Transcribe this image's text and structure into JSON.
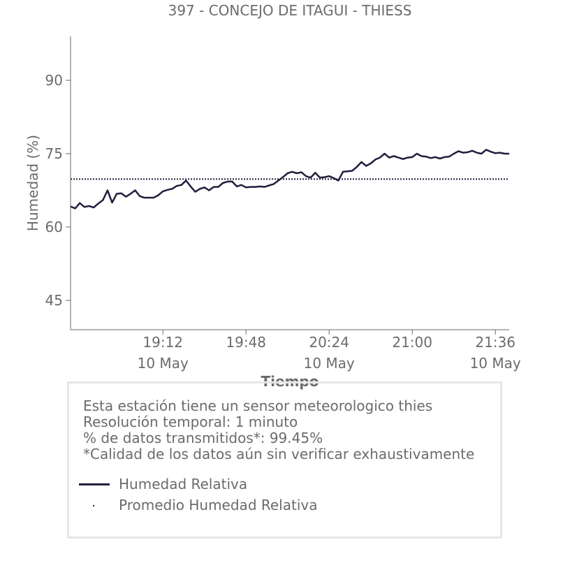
{
  "title": "397 - CONCEJO DE ITAGUI - THIESS",
  "chart_data": {
    "type": "line",
    "title": "397 - CONCEJO DE ITAGUI - THIESS",
    "xlabel": "Tiempo",
    "ylabel": "Humedad (%)",
    "ylim": [
      39,
      99
    ],
    "x_range": [
      "18:32",
      "21:42"
    ],
    "yticks": [
      45,
      60,
      75,
      90
    ],
    "xticks": [
      {
        "time": "19:12",
        "date": "10 May"
      },
      {
        "time": "19:48",
        "date": ""
      },
      {
        "time": "20:24",
        "date": "10 May"
      },
      {
        "time": "21:00",
        "date": ""
      },
      {
        "time": "21:36",
        "date": "10 May"
      }
    ],
    "grid": false,
    "series": [
      {
        "name": "Humedad Relativa",
        "color": "#1f1f3d",
        "style": "solid",
        "points": [
          [
            "18:32",
            64.2
          ],
          [
            "18:34",
            63.8
          ],
          [
            "18:36",
            64.9
          ],
          [
            "18:38",
            64.1
          ],
          [
            "18:40",
            64.3
          ],
          [
            "18:42",
            64.0
          ],
          [
            "18:44",
            64.8
          ],
          [
            "18:46",
            65.5
          ],
          [
            "18:48",
            67.5
          ],
          [
            "18:50",
            65.0
          ],
          [
            "18:52",
            66.8
          ],
          [
            "18:54",
            66.9
          ],
          [
            "18:56",
            66.2
          ],
          [
            "18:58",
            66.8
          ],
          [
            "19:00",
            67.5
          ],
          [
            "19:02",
            66.3
          ],
          [
            "19:04",
            66.0
          ],
          [
            "19:06",
            66.0
          ],
          [
            "19:08",
            66.0
          ],
          [
            "19:10",
            66.5
          ],
          [
            "19:12",
            67.3
          ],
          [
            "19:14",
            67.6
          ],
          [
            "19:16",
            67.8
          ],
          [
            "19:18",
            68.4
          ],
          [
            "19:20",
            68.6
          ],
          [
            "19:22",
            69.5
          ],
          [
            "19:24",
            68.3
          ],
          [
            "19:26",
            67.2
          ],
          [
            "19:28",
            67.8
          ],
          [
            "19:30",
            68.1
          ],
          [
            "19:32",
            67.5
          ],
          [
            "19:34",
            68.2
          ],
          [
            "19:36",
            68.2
          ],
          [
            "19:38",
            69.0
          ],
          [
            "19:40",
            69.3
          ],
          [
            "19:42",
            69.3
          ],
          [
            "19:44",
            68.3
          ],
          [
            "19:46",
            68.6
          ],
          [
            "19:48",
            68.1
          ],
          [
            "19:50",
            68.2
          ],
          [
            "19:52",
            68.2
          ],
          [
            "19:54",
            68.3
          ],
          [
            "19:56",
            68.2
          ],
          [
            "19:58",
            68.5
          ],
          [
            "20:00",
            68.8
          ],
          [
            "20:02",
            69.5
          ],
          [
            "20:04",
            70.2
          ],
          [
            "20:06",
            71.0
          ],
          [
            "20:08",
            71.3
          ],
          [
            "20:10",
            71.0
          ],
          [
            "20:12",
            71.2
          ],
          [
            "20:14",
            70.4
          ],
          [
            "20:16",
            70.1
          ],
          [
            "20:18",
            71.1
          ],
          [
            "20:20",
            70.1
          ],
          [
            "20:22",
            70.2
          ],
          [
            "20:24",
            70.4
          ],
          [
            "20:26",
            70.0
          ],
          [
            "20:28",
            69.5
          ],
          [
            "20:30",
            71.3
          ],
          [
            "20:32",
            71.4
          ],
          [
            "20:34",
            71.5
          ],
          [
            "20:36",
            72.3
          ],
          [
            "20:38",
            73.3
          ],
          [
            "20:40",
            72.5
          ],
          [
            "20:42",
            73.0
          ],
          [
            "20:44",
            73.8
          ],
          [
            "20:46",
            74.2
          ],
          [
            "20:48",
            75.0
          ],
          [
            "20:50",
            74.2
          ],
          [
            "20:52",
            74.5
          ],
          [
            "20:54",
            74.2
          ],
          [
            "20:56",
            73.9
          ],
          [
            "20:58",
            74.2
          ],
          [
            "21:00",
            74.3
          ],
          [
            "21:02",
            75.0
          ],
          [
            "21:04",
            74.5
          ],
          [
            "21:06",
            74.4
          ],
          [
            "21:08",
            74.1
          ],
          [
            "21:10",
            74.3
          ],
          [
            "21:12",
            74.0
          ],
          [
            "21:14",
            74.3
          ],
          [
            "21:16",
            74.4
          ],
          [
            "21:18",
            75.0
          ],
          [
            "21:20",
            75.5
          ],
          [
            "21:22",
            75.2
          ],
          [
            "21:24",
            75.3
          ],
          [
            "21:26",
            75.6
          ],
          [
            "21:28",
            75.2
          ],
          [
            "21:30",
            75.0
          ],
          [
            "21:32",
            75.8
          ],
          [
            "21:34",
            75.4
          ],
          [
            "21:36",
            75.1
          ],
          [
            "21:38",
            75.2
          ],
          [
            "21:40",
            75.0
          ],
          [
            "21:42",
            75.0
          ]
        ]
      },
      {
        "name": "Promedio Humedad Relativa",
        "color": "#1f1f3d",
        "style": "dotted",
        "points": [
          [
            "18:32",
            69.8
          ],
          [
            "21:42",
            69.8
          ]
        ]
      }
    ]
  },
  "info": {
    "line1": "Esta estación tiene un sensor meteorologico thies",
    "line2": "Resolución temporal: 1 minuto",
    "line3": "% de datos transmitidos*: 99.45%",
    "line4": "*Calidad de los datos aún sin verificar exhaustivamente"
  },
  "legend": {
    "series1": "Humedad Relativa",
    "series2": "Promedio Humedad Relativa"
  }
}
